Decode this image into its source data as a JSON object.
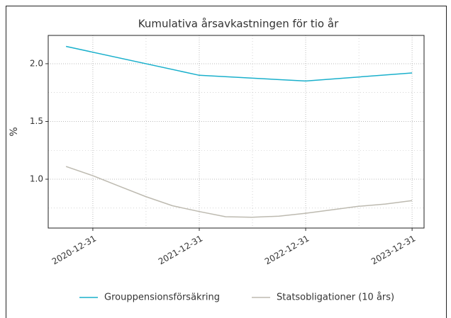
{
  "chart_data": {
    "type": "line",
    "title": "Kumulativa årsavkastningen för tio år",
    "ylabel": "%",
    "xlim": [
      "2020-07-31",
      "2024-02-10"
    ],
    "xticks": [
      "2020-12-31",
      "2021-12-31",
      "2022-12-31",
      "2023-12-31"
    ],
    "ylim": [
      0.577,
      2.245
    ],
    "yticks": [
      {
        "value": 1.0,
        "label": "1.0"
      },
      1.5,
      {
        "value": 2.0,
        "label": "2.0"
      }
    ],
    "grid": true,
    "legend": "bottom",
    "series": [
      {
        "name": "Grouppensionsförsäkring",
        "color": "#1ab0cc",
        "x": [
          "2020-09-30",
          "2021-12-31",
          "2022-12-31",
          "2023-12-31"
        ],
        "values": [
          2.15,
          1.9,
          1.85,
          1.92
        ]
      },
      {
        "name": "Statsobligationer (10 års)",
        "color": "#bdbab0",
        "x": [
          "2020-09-30",
          "2020-12-31",
          "2021-03-31",
          "2021-06-30",
          "2021-09-30",
          "2021-12-31",
          "2022-03-31",
          "2022-06-30",
          "2022-09-30",
          "2022-12-31",
          "2023-03-31",
          "2023-06-30",
          "2023-09-30",
          "2023-12-31"
        ],
        "values": [
          1.11,
          1.03,
          0.94,
          0.85,
          0.77,
          0.72,
          0.675,
          0.67,
          0.68,
          0.705,
          0.735,
          0.765,
          0.785,
          0.815
        ]
      }
    ]
  }
}
